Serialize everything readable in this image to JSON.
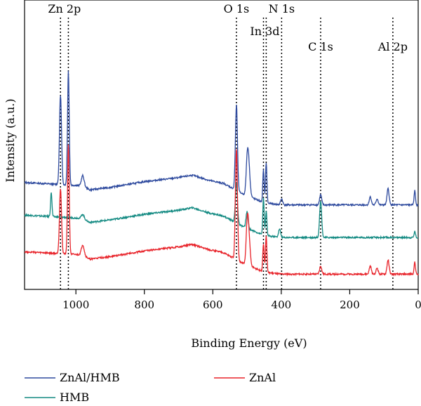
{
  "chart_data": {
    "type": "line",
    "title": "",
    "xlabel": "Binding Energy (eV)",
    "ylabel": "Intensity (a.u.)",
    "xlim": [
      1150,
      0
    ],
    "x_reversed": true,
    "x_ticks": [
      1000,
      800,
      600,
      400,
      200,
      0
    ],
    "y_ticks_shown": false,
    "grid": false,
    "legend_position": "bottom",
    "annotations": [
      {
        "label": "Zn 2p",
        "lines": [
          1045,
          1022
        ]
      },
      {
        "label": "O 1s",
        "lines": [
          531
        ]
      },
      {
        "label": "In 3d",
        "lines": [
          452,
          444
        ]
      },
      {
        "label": "N 1s",
        "lines": [
          399
        ]
      },
      {
        "label": "C 1s",
        "lines": [
          285
        ]
      },
      {
        "label": "Al 2p",
        "lines": [
          74
        ]
      }
    ],
    "baseline_trend": [
      [
        1150,
        0.2
      ],
      [
        980,
        0.12
      ],
      [
        960,
        0.02
      ],
      [
        900,
        0.08
      ],
      [
        800,
        0.22
      ],
      [
        700,
        0.32
      ],
      [
        660,
        0.38
      ],
      [
        610,
        0.25
      ],
      [
        570,
        0.18
      ],
      [
        540,
        0.05
      ],
      [
        520,
        -0.05
      ],
      [
        500,
        -0.12
      ],
      [
        450,
        -0.3
      ],
      [
        400,
        -0.35
      ],
      [
        200,
        -0.35
      ],
      [
        0,
        -0.35
      ]
    ],
    "series": [
      {
        "name": "ZnAl/HMB",
        "color": "#2e4a9e",
        "offset": 1.7,
        "peaks": [
          [
            1045,
            2.2,
            3
          ],
          [
            1022,
            2.8,
            2.5
          ],
          [
            980,
            0.25,
            4
          ],
          [
            531,
            2.1,
            3
          ],
          [
            500,
            0.5,
            3
          ],
          [
            496,
            0.9,
            4
          ],
          [
            452,
            0.8,
            2
          ],
          [
            444,
            1.0,
            2
          ],
          [
            399,
            0.15,
            3
          ],
          [
            285,
            0.25,
            3
          ],
          [
            140,
            0.2,
            3
          ],
          [
            120,
            0.15,
            3
          ],
          [
            88,
            0.4,
            3
          ],
          [
            10,
            0.35,
            2
          ]
        ]
      },
      {
        "name": "HMB",
        "color": "#138a82",
        "offset": 0.9,
        "peaks": [
          [
            1072,
            0.6,
            2
          ],
          [
            980,
            0.1,
            4
          ],
          [
            531,
            1.0,
            3
          ],
          [
            500,
            0.4,
            3
          ],
          [
            452,
            0.9,
            2
          ],
          [
            444,
            0.6,
            2
          ],
          [
            405,
            0.2,
            3
          ],
          [
            285,
            0.9,
            3
          ],
          [
            10,
            0.15,
            2
          ]
        ]
      },
      {
        "name": "ZnAl",
        "color": "#e8232a",
        "offset": 0,
        "peaks": [
          [
            1045,
            1.6,
            3
          ],
          [
            1022,
            2.7,
            2.5
          ],
          [
            980,
            0.25,
            4
          ],
          [
            531,
            2.7,
            3
          ],
          [
            500,
            0.6,
            3
          ],
          [
            496,
            0.9,
            4
          ],
          [
            452,
            0.7,
            2
          ],
          [
            444,
            0.9,
            2
          ],
          [
            285,
            0.2,
            3
          ],
          [
            140,
            0.2,
            3
          ],
          [
            120,
            0.15,
            3
          ],
          [
            88,
            0.35,
            3
          ],
          [
            10,
            0.3,
            2
          ]
        ]
      }
    ]
  }
}
